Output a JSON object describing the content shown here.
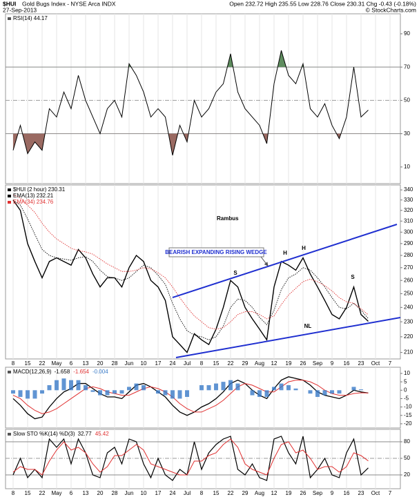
{
  "header": {
    "symbol": "$HUI",
    "name": "Gold Bugs Index - NYSE Arca INDX",
    "date": "27-Sep-2013",
    "quote": "Open 232.72  High 235.55  Low 228.76  Close 230.31  Chg -0.43 (-0.18%)",
    "credit": "© StockCharts.com"
  },
  "chart_data": [
    {
      "type": "line",
      "label": "RSI(14) 44.17",
      "ylim": [
        0,
        102
      ],
      "yticks": [
        10,
        30,
        50,
        70,
        90
      ],
      "level_lines": [
        70,
        30
      ],
      "mid_line": 50,
      "fill_above": {
        "level": 70,
        "color": "#5f8d5f"
      },
      "fill_below": {
        "level": 30,
        "color": "#9a6a62"
      },
      "series": [
        {
          "color": "#000000",
          "values": [
            20,
            35,
            18,
            25,
            20,
            45,
            40,
            55,
            45,
            65,
            50,
            40,
            30,
            45,
            50,
            40,
            72,
            65,
            55,
            40,
            45,
            40,
            17,
            35,
            25,
            50,
            40,
            45,
            55,
            60,
            78,
            55,
            45,
            40,
            35,
            24,
            60,
            80,
            65,
            60,
            72,
            45,
            40,
            48,
            35,
            27,
            40,
            70,
            40,
            44.17,
            null,
            null,
            null,
            null
          ]
        }
      ]
    },
    {
      "type": "line",
      "log": true,
      "ylim": [
        206,
        345
      ],
      "yticks": [
        210,
        220,
        230,
        240,
        250,
        260,
        270,
        280,
        290,
        300,
        310,
        320,
        330,
        340
      ],
      "categories": [
        "8",
        null,
        "15",
        null,
        "22",
        null,
        "May",
        null,
        "6",
        null,
        "13",
        null,
        "20",
        null,
        "28",
        null,
        "Jun",
        null,
        "10",
        null,
        "17",
        null,
        "24",
        null,
        "Jul",
        null,
        "8",
        null,
        "15",
        null,
        "22",
        null,
        "29",
        null,
        "Aug",
        null,
        "12",
        null,
        "19",
        null,
        "26",
        null,
        "Sep",
        null,
        "9",
        null,
        "16",
        null,
        "23",
        null,
        "Oct",
        null,
        "7",
        null
      ],
      "annotations": {
        "author": "Rambus",
        "pattern": "BEARISH EXPANDING RISING WEDGE",
        "head1": "H",
        "head2": "H",
        "shoulder1": "S",
        "shoulder2": "S",
        "neckline": "NL"
      },
      "series": [
        {
          "name": "$HUI (2 hour) 230.31",
          "color": "#000000",
          "width": 1.4,
          "values": [
            330,
            320,
            290,
            275,
            262,
            275,
            278,
            275,
            272,
            285,
            278,
            265,
            255,
            262,
            262,
            255,
            270,
            280,
            275,
            260,
            255,
            245,
            220,
            215,
            210,
            222,
            218,
            215,
            225,
            240,
            260,
            255,
            240,
            232,
            225,
            218,
            255,
            275,
            272,
            268,
            278,
            265,
            255,
            245,
            235,
            232,
            240,
            255,
            235,
            230.31,
            null,
            null,
            null,
            null
          ]
        },
        {
          "name": "EMA(13) 232.21",
          "color": "#000000",
          "dash": true,
          "width": 0.9,
          "values": [
            330,
            325,
            312,
            298,
            285,
            280,
            278,
            277,
            276,
            278,
            279,
            275,
            268,
            263,
            262,
            260,
            262,
            267,
            272,
            270,
            264,
            257,
            243,
            232,
            224,
            221,
            220,
            218,
            220,
            227,
            240,
            246,
            245,
            240,
            233,
            228,
            238,
            253,
            262,
            265,
            270,
            268,
            262,
            255,
            247,
            240,
            239,
            243,
            238,
            232.21,
            null,
            null,
            null,
            null
          ]
        },
        {
          "name": "EMA(34) 234.76",
          "color": "#e03030",
          "dash": true,
          "width": 0.9,
          "values": [
            335,
            332,
            325,
            318,
            308,
            300,
            294,
            290,
            286,
            284,
            283,
            281,
            277,
            273,
            270,
            267,
            267,
            268,
            270,
            269,
            266,
            262,
            255,
            247,
            240,
            234,
            230,
            226,
            225,
            226,
            230,
            235,
            237,
            237,
            235,
            232,
            234,
            242,
            249,
            254,
            259,
            261,
            259,
            256,
            252,
            247,
            244,
            243,
            239,
            234.76,
            null,
            null,
            null,
            null
          ]
        }
      ]
    },
    {
      "type": "line",
      "label": "MACD(12,26,9)",
      "ylim": [
        -22.5,
        13.7
      ],
      "yticks": [
        10,
        5,
        0,
        -5,
        -10,
        -15,
        -20
      ],
      "series": [
        {
          "name": "-1.658",
          "color": "#000000",
          "width": 1.3,
          "values": [
            -5,
            -9,
            -14,
            -17,
            -16,
            -10,
            -5,
            -1,
            1,
            4,
            4,
            1,
            -2,
            -4,
            -4,
            -5,
            -1,
            3,
            4,
            2,
            -1,
            -4,
            -9,
            -13,
            -15,
            -13,
            -10,
            -8,
            -5,
            -1,
            4,
            6,
            4,
            0,
            -3,
            -5,
            1,
            6,
            8,
            7,
            6,
            3,
            -1,
            -3,
            -4,
            -5,
            -3,
            0,
            -1,
            -1.658,
            null,
            null,
            null,
            null
          ]
        },
        {
          "name": "-1.654",
          "color": "#e03030",
          "width": 1,
          "values": [
            -3,
            -5,
            -9,
            -12,
            -14,
            -13,
            -11,
            -8,
            -5,
            -2,
            1,
            2,
            1,
            -1,
            -2,
            -3,
            -3,
            -1,
            1,
            2,
            1,
            -1,
            -4,
            -8,
            -11,
            -13,
            -13,
            -11,
            -9,
            -6,
            -2,
            2,
            4,
            3,
            1,
            -1,
            -1,
            2,
            5,
            6,
            6,
            5,
            3,
            0,
            -2,
            -3,
            -3,
            -2,
            -1.5,
            -1.654,
            null,
            null,
            null,
            null
          ]
        },
        {
          "name": "-0.004",
          "color": "#3a7bc8",
          "style": "histogram",
          "values": [
            -2,
            -4,
            -5,
            -5,
            -2,
            3,
            6,
            7,
            6,
            6,
            3,
            -1,
            -3,
            -3,
            -2,
            -2,
            2,
            4,
            3,
            0,
            -2,
            -3,
            -5,
            -5,
            -4,
            0,
            3,
            3,
            4,
            5,
            6,
            4,
            0,
            -3,
            -4,
            -4,
            2,
            4,
            3,
            1,
            0,
            -2,
            -4,
            -3,
            -2,
            -2,
            0,
            2,
            0.5,
            -0.004,
            null,
            null,
            null,
            null
          ]
        }
      ]
    },
    {
      "type": "line",
      "label": "Slow STO %K(14) %D(3)",
      "ylim": [
        -5,
        102.5
      ],
      "yticks": [
        20,
        50,
        80
      ],
      "level_lines": [
        80,
        20
      ],
      "mid_line": 50,
      "series": [
        {
          "name": "32.77",
          "color": "#000000",
          "width": 1.2,
          "values": [
            20,
            50,
            15,
            30,
            15,
            85,
            70,
            85,
            40,
            85,
            60,
            20,
            15,
            60,
            70,
            40,
            85,
            80,
            40,
            15,
            50,
            20,
            10,
            30,
            20,
            80,
            30,
            60,
            75,
            85,
            90,
            30,
            20,
            40,
            15,
            10,
            85,
            90,
            60,
            40,
            90,
            15,
            30,
            50,
            20,
            15,
            60,
            85,
            20,
            32.77,
            null,
            null,
            null,
            null
          ]
        },
        {
          "name": "45.42",
          "color": "#e03030",
          "width": 1,
          "values": [
            25,
            35,
            30,
            30,
            20,
            45,
            65,
            80,
            65,
            70,
            60,
            40,
            25,
            35,
            55,
            55,
            65,
            75,
            65,
            40,
            35,
            30,
            25,
            20,
            20,
            45,
            45,
            55,
            60,
            75,
            85,
            70,
            40,
            30,
            25,
            20,
            50,
            75,
            80,
            60,
            65,
            50,
            30,
            35,
            35,
            25,
            35,
            60,
            55,
            45.42,
            null,
            null,
            null,
            null
          ]
        }
      ]
    }
  ]
}
